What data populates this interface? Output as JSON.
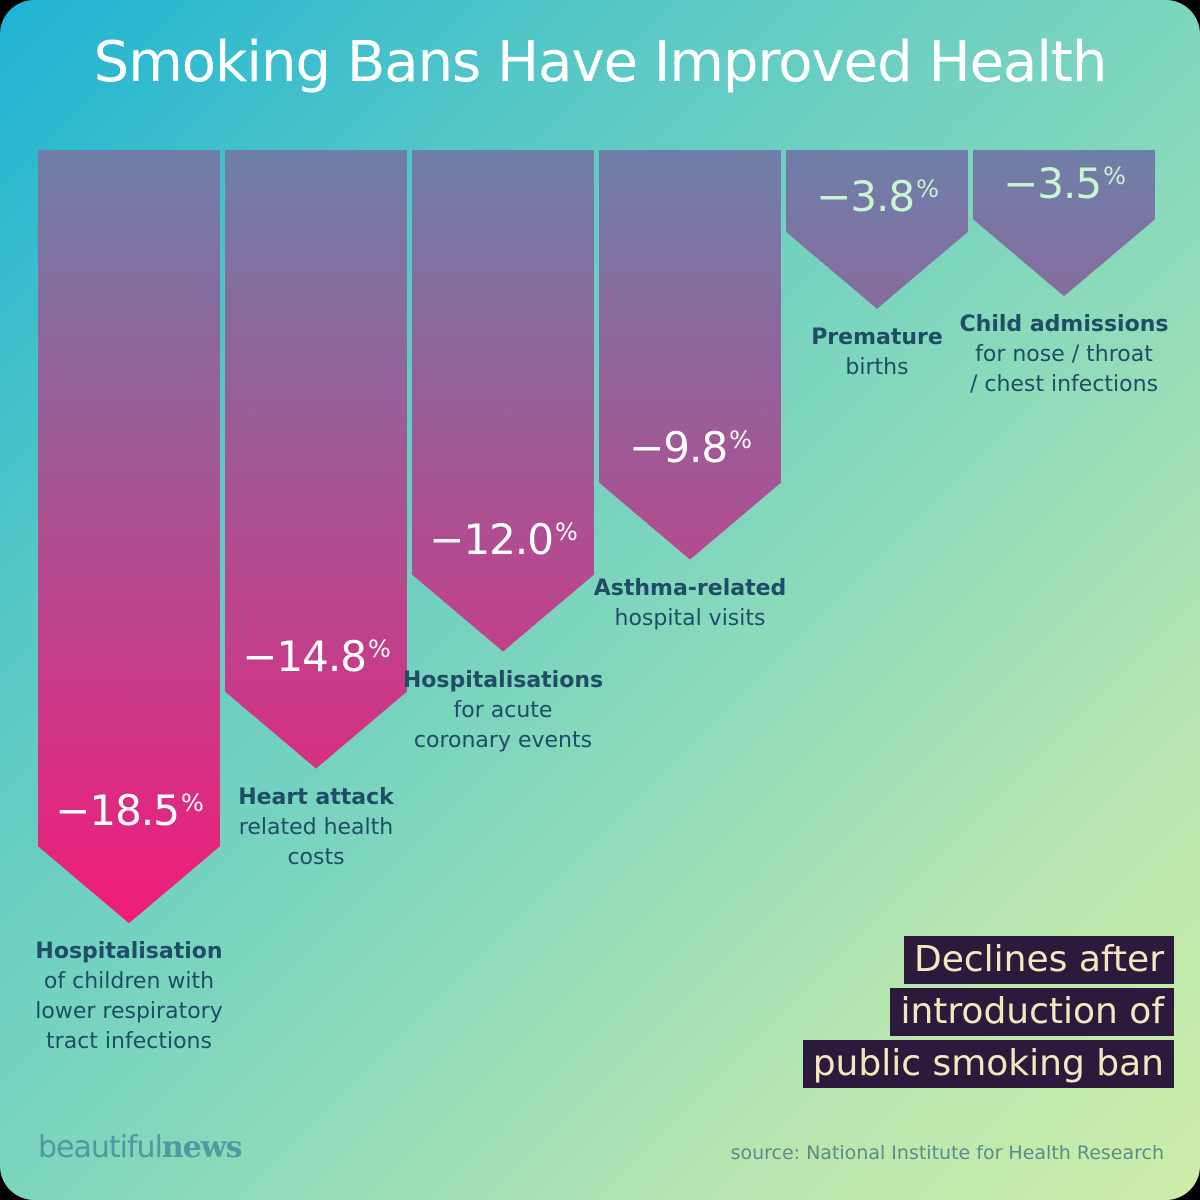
{
  "title": "Smoking Bans Have Improved Health",
  "chart_data": {
    "type": "bar",
    "categories": [
      "Hospitalisation of children with lower respiratory tract infections",
      "Heart attack related health costs",
      "Hospitalisations for acute coronary events",
      "Asthma-related hospital visits",
      "Premature births",
      "Child admissions for nose / throat / chest infections"
    ],
    "values": [
      -18.5,
      -14.8,
      -12.0,
      -9.8,
      -3.8,
      -3.5
    ],
    "value_labels": [
      "-18.5",
      "-14.8",
      "-12.0",
      "-9.8",
      "-3.8",
      "-3.5"
    ],
    "unit": "%",
    "label_heads": [
      "Hospitalisation",
      "Heart attack",
      "Hospitalisations",
      "Asthma-related",
      "Premature",
      "Child admissions"
    ],
    "label_subs": [
      [
        "of children with",
        "lower respiratory",
        "tract infections"
      ],
      [
        "related health",
        "costs"
      ],
      [
        "for acute",
        "coronary events"
      ],
      [
        "hospital visits"
      ],
      [
        "births"
      ],
      [
        "for nose / throat",
        "/ chest infections"
      ]
    ],
    "colors": {
      "top": "#6e7fa8",
      "bottom": "#f01c7a"
    }
  },
  "note_lines": [
    "Declines after",
    "introduction of",
    "public smoking ban"
  ],
  "brand": {
    "part1": "beautiful",
    "part2": "news"
  },
  "source": "source: National Institute for Health Research"
}
